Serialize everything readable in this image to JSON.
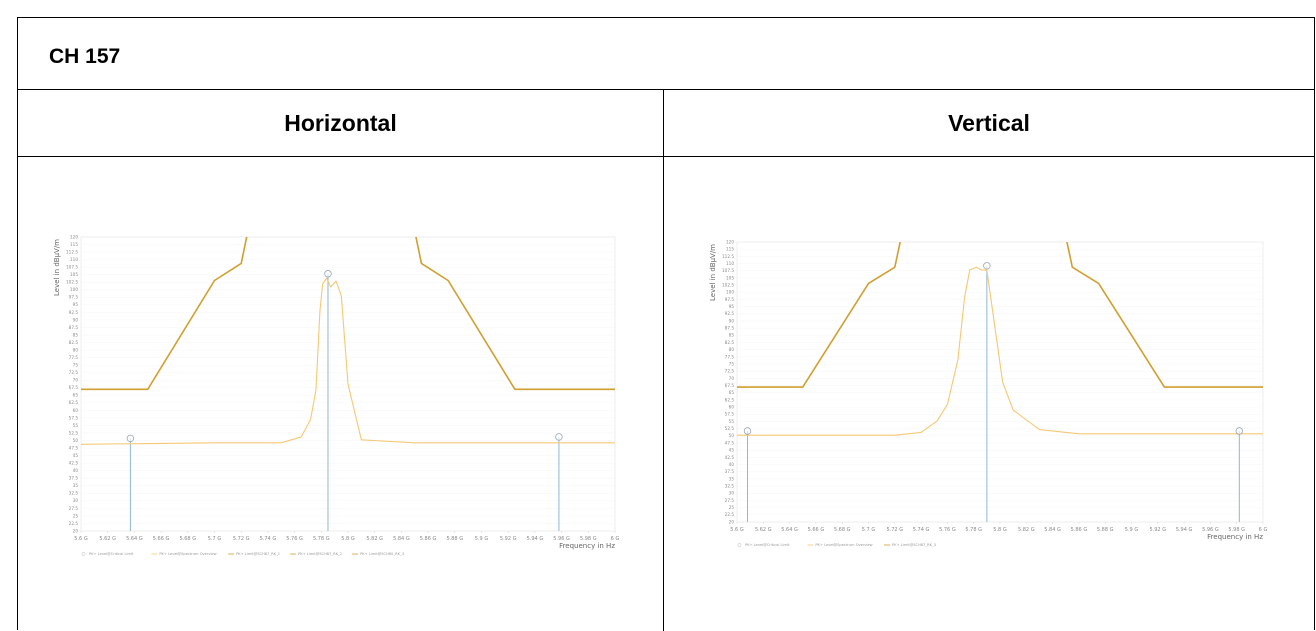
{
  "header": {
    "title": "CH 157"
  },
  "columns": [
    "Horizontal",
    "Vertical"
  ],
  "colors": {
    "limit": "#d09f2f",
    "trace": "#f5c875",
    "marker": "#8fb7d8",
    "grid": "#eeeeee"
  },
  "chart_data": [
    {
      "type": "line",
      "panel": "Horizontal",
      "ylabel": "Level in dBµV/m",
      "xlabel": "Frequency in Hz",
      "xlim": [
        5600000000.0,
        6000000000.0
      ],
      "ylim": [
        20,
        120
      ],
      "x_tick_labels": [
        "5.6 G",
        "5.62 G",
        "5.64 G",
        "5.66 G",
        "5.68 G",
        "5.7 G",
        "5.72 G",
        "5.74 G",
        "5.76 G",
        "5.78 G",
        "5.8 G",
        "5.82 G",
        "5.84 G",
        "5.86 G",
        "5.88 G",
        "5.9 G",
        "5.92 G",
        "5.94 G",
        "5.96 G",
        "5.98 G",
        "6 G"
      ],
      "y_tick_labels": [
        "120",
        "115",
        "112.5",
        "110",
        "107.5",
        "105",
        "102.5",
        "100",
        "97.5",
        "95",
        "92.5",
        "90",
        "87.5",
        "85",
        "82.5",
        "80",
        "77.5",
        "75",
        "72.5",
        "70",
        "67.5",
        "65",
        "62.5",
        "60",
        "57.5",
        "55",
        "52.5",
        "50",
        "47.5",
        "45",
        "42.5",
        "40",
        "37.5",
        "35",
        "32.5",
        "30",
        "27.5",
        "25",
        "22.5",
        "20"
      ],
      "series": [
        {
          "role": "limit",
          "x": [
            5600000000.0,
            5650000000.0,
            5700000000.0,
            5720000000.0,
            5725000000.0,
            5850000000.0,
            5855000000.0,
            5875000000.0,
            5925000000.0,
            6000000000.0
          ],
          "y": [
            68.2,
            68.2,
            105.2,
            111,
            122,
            122,
            111,
            105.2,
            68.2,
            68.2
          ]
        },
        {
          "role": "trace",
          "x": [
            5600000000.0,
            5700000000.0,
            5750000000.0,
            5765000000.0,
            5772000000.0,
            5776000000.0,
            5779000000.0,
            5781000000.0,
            5784000000.0,
            5787000000.0,
            5791000000.0,
            5795000000.0,
            5800000000.0,
            5810000000.0,
            5850000000.0,
            6000000000.0
          ],
          "y": [
            49.5,
            50,
            50,
            52,
            58,
            68,
            95,
            104,
            106,
            103,
            105,
            100,
            70,
            51,
            50,
            50
          ]
        }
      ],
      "markers": [
        {
          "x": 5637000000.0,
          "y": 51.5
        },
        {
          "x": 5785000000.0,
          "y": 107.5
        },
        {
          "x": 5958000000.0,
          "y": 52
        }
      ],
      "legend": [
        "PK+ Level@Critical Limit",
        "PK+ Level@Spectrum Overview",
        "PK+ Limit@SCH87_RK_1",
        "PK+ Limit@SCH87_RK_2",
        "PK+ Limit@SCH80_RK_3"
      ]
    },
    {
      "type": "line",
      "panel": "Vertical",
      "ylabel": "Level in dBµV/m",
      "xlabel": "Frequency in Hz",
      "xlim": [
        5600000000.0,
        6000000000.0
      ],
      "ylim": [
        20,
        120
      ],
      "x_tick_labels": [
        "5.6 G",
        "5.62 G",
        "5.64 G",
        "5.66 G",
        "5.68 G",
        "5.7 G",
        "5.72 G",
        "5.74 G",
        "5.76 G",
        "5.78 G",
        "5.8 G",
        "5.82 G",
        "5.84 G",
        "5.86 G",
        "5.88 G",
        "5.9 G",
        "5.92 G",
        "5.94 G",
        "5.96 G",
        "5.98 G",
        "6 G"
      ],
      "y_tick_labels": [
        "120",
        "115",
        "112.5",
        "110",
        "107.5",
        "105",
        "102.5",
        "100",
        "97.5",
        "95",
        "92.5",
        "90",
        "87.5",
        "85",
        "82.5",
        "80",
        "77.5",
        "75",
        "72.5",
        "70",
        "67.5",
        "65",
        "62.5",
        "60",
        "57.5",
        "55",
        "52.5",
        "50",
        "47.5",
        "45",
        "42.5",
        "40",
        "37.5",
        "35",
        "32.5",
        "30",
        "27.5",
        "25",
        "22.5",
        "20"
      ],
      "series": [
        {
          "role": "limit",
          "x": [
            5600000000.0,
            5650000000.0,
            5700000000.0,
            5720000000.0,
            5725000000.0,
            5850000000.0,
            5855000000.0,
            5875000000.0,
            5925000000.0,
            6000000000.0
          ],
          "y": [
            68.2,
            68.2,
            105.2,
            111,
            122,
            122,
            111,
            105.2,
            68.2,
            68.2
          ]
        },
        {
          "role": "trace",
          "x": [
            5600000000.0,
            5680000000.0,
            5720000000.0,
            5740000000.0,
            5752000000.0,
            5760000000.0,
            5768000000.0,
            5773000000.0,
            5777000000.0,
            5782000000.0,
            5786000000.0,
            5790000000.0,
            5796000000.0,
            5802000000.0,
            5810000000.0,
            5830000000.0,
            5860000000.0,
            6000000000.0
          ],
          "y": [
            51,
            51,
            51,
            52,
            56,
            62,
            78,
            100,
            110,
            111,
            110,
            110,
            90,
            70,
            60,
            53,
            51.5,
            51.5
          ]
        }
      ],
      "markers": [
        {
          "x": 5608000000.0,
          "y": 52.5
        },
        {
          "x": 5790000000.0,
          "y": 111.5
        },
        {
          "x": 5982000000.0,
          "y": 52.5
        }
      ],
      "legend": [
        "PK+ Level@Critical Limit",
        "PK+ Level@Spectrum Overview",
        "PK+ Limit@SCH87_RK_3"
      ]
    }
  ]
}
